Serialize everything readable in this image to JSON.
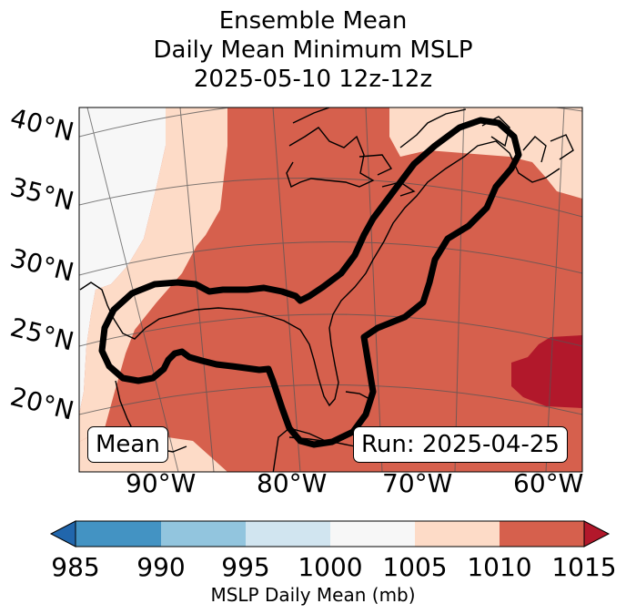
{
  "title": {
    "line1": "Ensemble Mean",
    "line2": "Daily Mean Minimum MSLP",
    "line3": "2025-05-10 12z-12z"
  },
  "map": {
    "lat_labels": [
      "40°N",
      "35°N",
      "30°N",
      "25°N",
      "20°N"
    ],
    "lon_labels": [
      "90°W",
      "80°W",
      "70°W",
      "60°W"
    ],
    "mean_label": "Mean",
    "run_label": "Run: 2025-04-25"
  },
  "colorbar": {
    "ticks": [
      "985",
      "990",
      "995",
      "1000",
      "1005",
      "1010",
      "1015"
    ],
    "title": "MSLP Daily Mean (mb)",
    "colors": {
      "below": "#2166ac",
      "b985_990": "#4393c3",
      "b990_995": "#92c5de",
      "b995_1000": "#d1e5f0",
      "b1000_1005": "#f7f7f7",
      "b1005_1010": "#fddbc7",
      "b1010_1015": "#d6604d",
      "above": "#b2182b"
    }
  }
}
